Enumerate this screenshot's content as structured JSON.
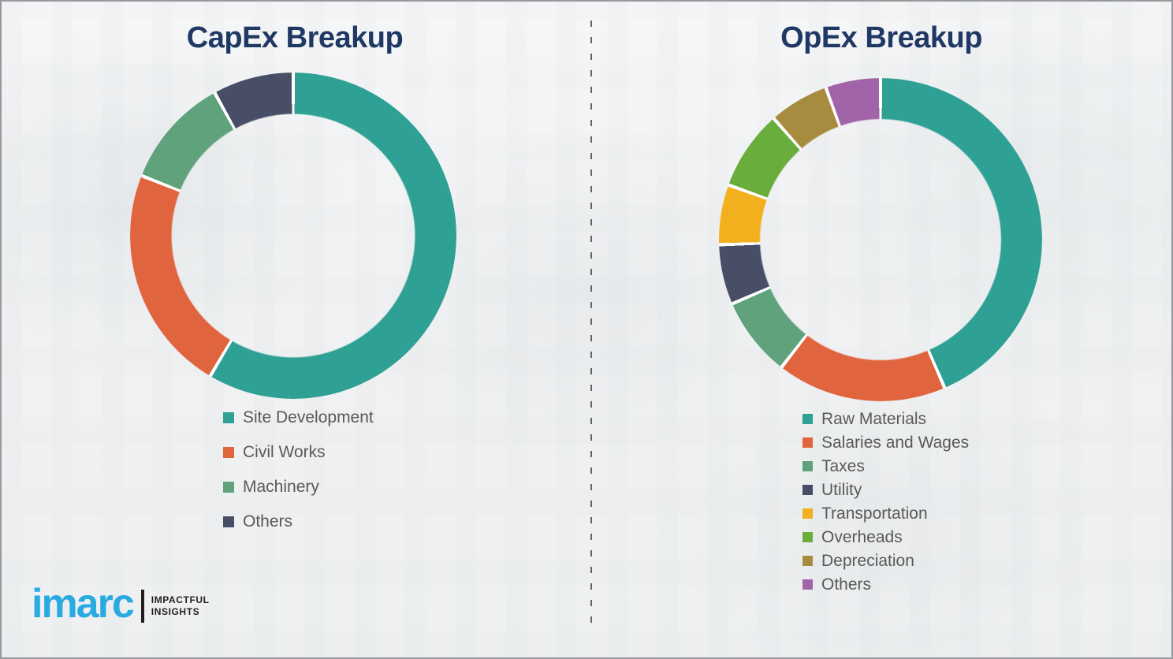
{
  "page": {
    "background_color": "#f1f2f3",
    "divider_style": "vertical-dashed",
    "divider_color": "#636363",
    "title_color": "#1f3864",
    "legend_text_color": "#595959"
  },
  "chart_data": [
    {
      "type": "pie",
      "subtype": "donut",
      "title": "CapEx Breakup",
      "categories": [
        "Site Development",
        "Civil Works",
        "Machinery",
        "Others"
      ],
      "values": [
        58.5,
        22.5,
        11,
        8
      ],
      "unit": "percent",
      "colors": [
        "#2ea094",
        "#e0653f",
        "#5fa27c",
        "#474e66"
      ],
      "start_angle_deg": 0,
      "direction": "clockwise",
      "hole_ratio": 0.75,
      "slice_gap_color": "#ffffff",
      "legend_position": "below-left"
    },
    {
      "type": "pie",
      "subtype": "donut",
      "title": "OpEx Breakup",
      "categories": [
        "Raw Materials",
        "Salaries and Wages",
        "Taxes",
        "Utility",
        "Transportation",
        "Overheads",
        "Depreciation",
        "Others"
      ],
      "values": [
        43.5,
        17,
        8,
        6,
        6,
        8,
        6,
        5.5
      ],
      "unit": "percent",
      "colors": [
        "#2ea094",
        "#e0653f",
        "#5fa27c",
        "#474e66",
        "#f2b01e",
        "#69ad3c",
        "#a78b3f",
        "#a264a8"
      ],
      "start_angle_deg": 0,
      "direction": "clockwise",
      "hole_ratio": 0.75,
      "slice_gap_color": "#ffffff",
      "legend_position": "below-left"
    }
  ],
  "brand": {
    "name": "imarc",
    "tagline_line1": "IMPACTFUL",
    "tagline_line2": "INSIGHTS",
    "logo_color": "#29abe2",
    "tagline_color": "#231f20"
  }
}
